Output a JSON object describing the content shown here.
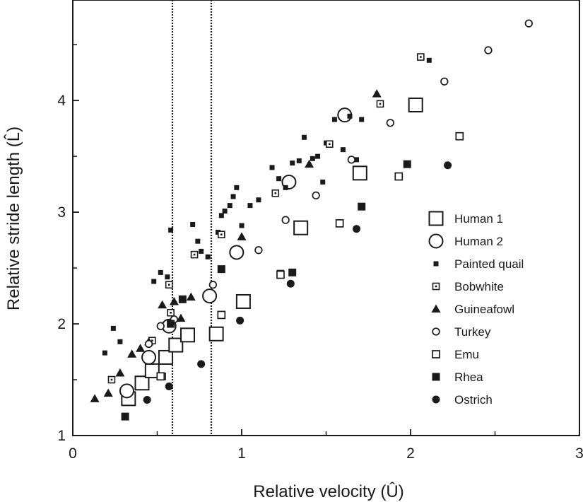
{
  "chart_data": {
    "type": "scatter",
    "title": "",
    "xlabel": "Relative velocity (Û)",
    "ylabel": "Relative stride length (L̂)",
    "xlim": [
      0,
      3
    ],
    "ylim": [
      1,
      4.9
    ],
    "xticks": [
      0,
      1,
      2,
      3
    ],
    "xtick_labels": [
      "0",
      "1",
      "2",
      "3"
    ],
    "yticks": [
      1,
      2,
      3,
      4
    ],
    "ytick_labels": [
      "1",
      "2",
      "3",
      "4"
    ],
    "grid": false,
    "legend_position": "right",
    "reference_lines_x": [
      0.59,
      0.82
    ],
    "series": [
      {
        "name": "Human 1",
        "marker": "square-open-large",
        "points": [
          [
            0.33,
            1.33
          ],
          [
            0.41,
            1.47
          ],
          [
            0.47,
            1.58
          ],
          [
            0.55,
            1.7
          ],
          [
            0.61,
            1.81
          ],
          [
            0.68,
            1.9
          ],
          [
            0.85,
            1.91
          ],
          [
            1.01,
            2.2
          ],
          [
            1.35,
            2.86
          ],
          [
            1.7,
            3.35
          ],
          [
            2.03,
            3.96
          ]
        ]
      },
      {
        "name": "Human 2",
        "marker": "circle-open-large",
        "points": [
          [
            0.32,
            1.4
          ],
          [
            0.45,
            1.7
          ],
          [
            0.57,
            1.98
          ],
          [
            0.81,
            2.25
          ],
          [
            0.97,
            2.64
          ],
          [
            1.28,
            3.27
          ],
          [
            1.61,
            3.87
          ]
        ]
      },
      {
        "name": "Painted quail",
        "marker": "square-filled-small",
        "points": [
          [
            0.19,
            1.74
          ],
          [
            0.24,
            1.96
          ],
          [
            0.28,
            1.84
          ],
          [
            0.48,
            2.38
          ],
          [
            0.52,
            2.46
          ],
          [
            0.56,
            2.42
          ],
          [
            0.58,
            2.84
          ],
          [
            0.71,
            2.89
          ],
          [
            0.74,
            2.74
          ],
          [
            0.76,
            2.65
          ],
          [
            0.8,
            2.6
          ],
          [
            0.86,
            2.82
          ],
          [
            0.88,
            2.97
          ],
          [
            0.9,
            3.01
          ],
          [
            0.93,
            3.06
          ],
          [
            0.95,
            3.14
          ],
          [
            0.97,
            3.22
          ],
          [
            1.0,
            2.88
          ],
          [
            1.05,
            3.06
          ],
          [
            1.1,
            3.11
          ],
          [
            1.18,
            3.4
          ],
          [
            1.22,
            3.3
          ],
          [
            1.26,
            3.22
          ],
          [
            1.3,
            3.44
          ],
          [
            1.34,
            3.46
          ],
          [
            1.37,
            3.67
          ],
          [
            1.42,
            3.48
          ],
          [
            1.45,
            3.5
          ],
          [
            1.48,
            3.27
          ],
          [
            1.5,
            3.62
          ],
          [
            1.55,
            3.83
          ],
          [
            1.6,
            3.56
          ],
          [
            1.64,
            3.86
          ],
          [
            1.68,
            3.47
          ],
          [
            1.71,
            3.83
          ],
          [
            2.11,
            4.36
          ]
        ]
      },
      {
        "name": "Bobwhite",
        "marker": "square-dot",
        "points": [
          [
            0.23,
            1.5
          ],
          [
            0.47,
            1.85
          ],
          [
            0.53,
            1.53
          ],
          [
            0.57,
            2.35
          ],
          [
            0.58,
            2.1
          ],
          [
            0.72,
            2.62
          ],
          [
            0.88,
            2.8
          ],
          [
            1.2,
            3.17
          ],
          [
            1.23,
            2.45
          ],
          [
            1.52,
            3.61
          ],
          [
            1.82,
            3.97
          ],
          [
            2.06,
            4.39
          ]
        ]
      },
      {
        "name": "Guineafowl",
        "marker": "triangle-filled",
        "points": [
          [
            0.13,
            1.33
          ],
          [
            0.21,
            1.38
          ],
          [
            0.28,
            1.56
          ],
          [
            0.35,
            1.73
          ],
          [
            0.4,
            1.78
          ],
          [
            0.45,
            1.84
          ],
          [
            0.53,
            2.17
          ],
          [
            0.6,
            2.2
          ],
          [
            0.64,
            2.05
          ],
          [
            0.7,
            2.24
          ],
          [
            1.0,
            2.78
          ],
          [
            1.4,
            3.43
          ],
          [
            1.8,
            4.06
          ]
        ]
      },
      {
        "name": "Turkey",
        "marker": "circle-open-small",
        "points": [
          [
            0.45,
            1.82
          ],
          [
            0.52,
            1.98
          ],
          [
            0.6,
            2.04
          ],
          [
            0.83,
            2.35
          ],
          [
            1.1,
            2.66
          ],
          [
            1.26,
            2.93
          ],
          [
            1.44,
            3.15
          ],
          [
            1.65,
            3.47
          ],
          [
            1.88,
            3.8
          ],
          [
            2.2,
            4.17
          ],
          [
            2.46,
            4.45
          ],
          [
            2.7,
            4.69
          ]
        ]
      },
      {
        "name": "Emu",
        "marker": "square-open-small",
        "points": [
          [
            0.52,
            1.53
          ],
          [
            0.88,
            2.08
          ],
          [
            1.23,
            2.44
          ],
          [
            1.58,
            2.9
          ],
          [
            1.93,
            3.32
          ],
          [
            2.29,
            3.68
          ]
        ]
      },
      {
        "name": "Rhea",
        "marker": "square-filled",
        "points": [
          [
            0.31,
            1.17
          ],
          [
            0.58,
            2.0
          ],
          [
            0.65,
            2.22
          ],
          [
            0.88,
            2.49
          ],
          [
            1.3,
            2.46
          ],
          [
            1.71,
            3.05
          ],
          [
            1.98,
            3.43
          ]
        ]
      },
      {
        "name": "Ostrich",
        "marker": "circle-filled",
        "points": [
          [
            0.44,
            1.32
          ],
          [
            0.57,
            1.44
          ],
          [
            0.76,
            1.64
          ],
          [
            0.99,
            2.03
          ],
          [
            1.29,
            2.36
          ],
          [
            1.68,
            2.85
          ],
          [
            2.22,
            3.42
          ]
        ]
      }
    ]
  }
}
